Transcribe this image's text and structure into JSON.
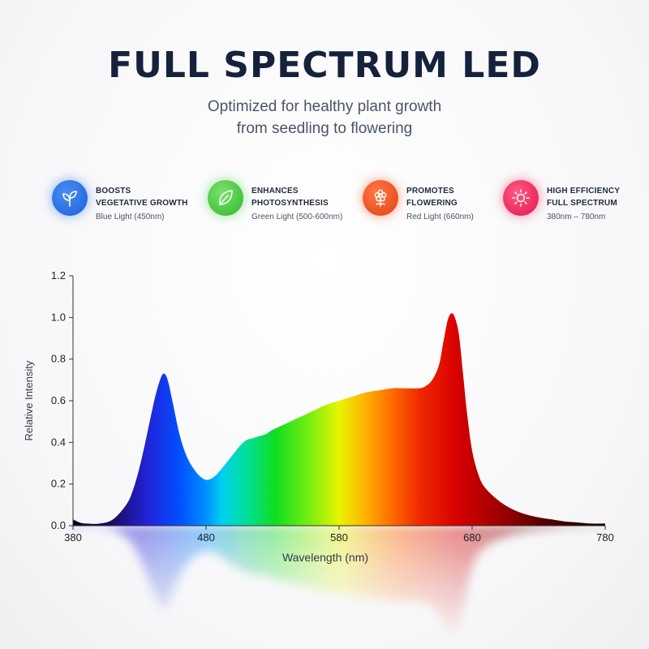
{
  "header": {
    "title": "FULL SPECTRUM LED",
    "subtitle_line1": "Optimized for healthy plant growth",
    "subtitle_line2": "from seedling to flowering"
  },
  "features": [
    {
      "line1": "BOOSTS",
      "line2": "VEGETATIVE GROWTH",
      "desc": "Blue Light (450nm)",
      "icon": "leaves-icon",
      "color": "#1f6fe8"
    },
    {
      "line1": "ENHANCES",
      "line2": "PHOTOSYNTHESIS",
      "desc": "Green Light (500-600nm)",
      "icon": "leaf-icon",
      "color": "#3fcf3a"
    },
    {
      "line1": "PROMOTES",
      "line2": "FLOWERING",
      "desc": "Red Light (660nm)",
      "icon": "flower-icon",
      "color": "#f2501e"
    },
    {
      "line1": "HIGH EFFICIENCY",
      "line2": "FULL SPECTRUM",
      "desc": "380nm – 780nm",
      "icon": "sun-icon",
      "color": "#f0245a"
    }
  ],
  "chart_data": {
    "type": "area",
    "xlabel": "Wavelength (nm)",
    "ylabel": "Relative Intensity",
    "xlim": [
      380,
      780
    ],
    "ylim": [
      0,
      1.2
    ],
    "xticks": [
      "380",
      "480",
      "580",
      "680",
      "780"
    ],
    "yticks": [
      "0.0",
      "0.2",
      "0.4",
      "0.6",
      "0.8",
      "1.0",
      "1.2"
    ],
    "grid": false,
    "series": [
      {
        "x": [
          380,
          385,
          390,
          400,
          410,
          420,
          425,
          430,
          435,
          440,
          443,
          446,
          448,
          450,
          452,
          455,
          460,
          465,
          470,
          475,
          480,
          485,
          490,
          495,
          500,
          505,
          510,
          515,
          520,
          525,
          530,
          540,
          550,
          560,
          570,
          580,
          590,
          600,
          610,
          620,
          630,
          640,
          645,
          650,
          655,
          658,
          661,
          663,
          665,
          667,
          670,
          673,
          676,
          680,
          685,
          690,
          700,
          710,
          720,
          730,
          740,
          750,
          760,
          770,
          780
        ],
        "y": [
          0.03,
          0.015,
          0.01,
          0.01,
          0.03,
          0.1,
          0.17,
          0.28,
          0.42,
          0.57,
          0.65,
          0.71,
          0.73,
          0.72,
          0.68,
          0.59,
          0.44,
          0.34,
          0.28,
          0.24,
          0.22,
          0.23,
          0.26,
          0.3,
          0.34,
          0.38,
          0.41,
          0.42,
          0.43,
          0.44,
          0.46,
          0.49,
          0.52,
          0.55,
          0.58,
          0.6,
          0.62,
          0.64,
          0.65,
          0.66,
          0.66,
          0.66,
          0.67,
          0.7,
          0.77,
          0.87,
          0.97,
          1.01,
          1.02,
          1.0,
          0.92,
          0.74,
          0.55,
          0.36,
          0.24,
          0.18,
          0.12,
          0.08,
          0.055,
          0.04,
          0.03,
          0.02,
          0.015,
          0.01,
          0.01
        ]
      }
    ]
  }
}
